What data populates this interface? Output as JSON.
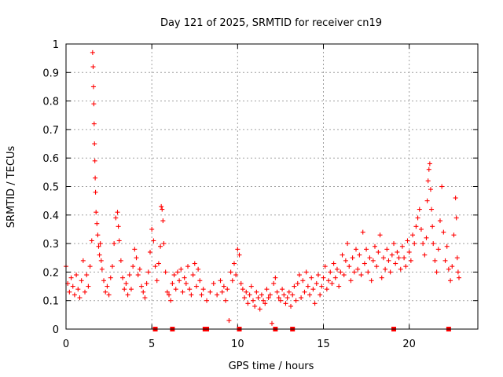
{
  "chart_data": {
    "type": "scatter",
    "title": "Day 121 of 2025, SRMTID for receiver cn19",
    "xlabel": "GPS time / hours",
    "ylabel": "SRMTID / TECUs",
    "xlim": [
      0,
      24
    ],
    "ylim": [
      0,
      1
    ],
    "grid": true,
    "marker": "+",
    "color": "#ff0000",
    "x_ticks": [
      0,
      5,
      10,
      15,
      20
    ],
    "x_tick_labels": [
      "0",
      "5",
      "10",
      "15",
      "20"
    ],
    "y_ticks": [
      0,
      0.1,
      0.2,
      0.3,
      0.4,
      0.5,
      0.6,
      0.7,
      0.8,
      0.9,
      1
    ],
    "y_tick_labels": [
      "0",
      "0.1",
      "0.2",
      "0.3",
      "0.4",
      "0.5",
      "0.6",
      "0.7",
      "0.8",
      "0.9",
      "1"
    ],
    "series": [
      {
        "name": "SRMTID",
        "points": [
          [
            0.0,
            0.22
          ],
          [
            0.1,
            0.16
          ],
          [
            0.2,
            0.13
          ],
          [
            0.3,
            0.18
          ],
          [
            0.4,
            0.15
          ],
          [
            0.5,
            0.12
          ],
          [
            0.6,
            0.19
          ],
          [
            0.7,
            0.14
          ],
          [
            0.8,
            0.11
          ],
          [
            0.9,
            0.17
          ],
          [
            1.0,
            0.24
          ],
          [
            1.1,
            0.13
          ],
          [
            1.2,
            0.19
          ],
          [
            1.3,
            0.15
          ],
          [
            1.4,
            0.22
          ],
          [
            1.5,
            0.31
          ],
          [
            1.55,
            0.97
          ],
          [
            1.58,
            0.92
          ],
          [
            1.6,
            0.85
          ],
          [
            1.62,
            0.79
          ],
          [
            1.64,
            0.72
          ],
          [
            1.66,
            0.65
          ],
          [
            1.68,
            0.59
          ],
          [
            1.7,
            0.53
          ],
          [
            1.72,
            0.48
          ],
          [
            1.75,
            0.41
          ],
          [
            1.8,
            0.37
          ],
          [
            1.85,
            0.33
          ],
          [
            1.9,
            0.29
          ],
          [
            1.95,
            0.26
          ],
          [
            2.0,
            0.3
          ],
          [
            2.05,
            0.24
          ],
          [
            2.1,
            0.21
          ],
          [
            2.2,
            0.17
          ],
          [
            2.3,
            0.13
          ],
          [
            2.4,
            0.15
          ],
          [
            2.5,
            0.12
          ],
          [
            2.6,
            0.18
          ],
          [
            2.7,
            0.22
          ],
          [
            2.8,
            0.3
          ],
          [
            2.9,
            0.39
          ],
          [
            3.0,
            0.41
          ],
          [
            3.05,
            0.36
          ],
          [
            3.1,
            0.31
          ],
          [
            3.2,
            0.24
          ],
          [
            3.3,
            0.18
          ],
          [
            3.4,
            0.14
          ],
          [
            3.5,
            0.16
          ],
          [
            3.6,
            0.12
          ],
          [
            3.7,
            0.19
          ],
          [
            3.8,
            0.14
          ],
          [
            3.9,
            0.22
          ],
          [
            4.0,
            0.28
          ],
          [
            4.1,
            0.25
          ],
          [
            4.2,
            0.19
          ],
          [
            4.3,
            0.21
          ],
          [
            4.4,
            0.15
          ],
          [
            4.5,
            0.13
          ],
          [
            4.6,
            0.11
          ],
          [
            4.7,
            0.16
          ],
          [
            4.8,
            0.2
          ],
          [
            4.9,
            0.27
          ],
          [
            5.0,
            0.35
          ],
          [
            5.1,
            0.31
          ],
          [
            5.2,
            0.22
          ],
          [
            5.3,
            0.17
          ],
          [
            5.4,
            0.23
          ],
          [
            5.5,
            0.29
          ],
          [
            5.55,
            0.43
          ],
          [
            5.6,
            0.42
          ],
          [
            5.65,
            0.38
          ],
          [
            5.7,
            0.3
          ],
          [
            5.8,
            0.2
          ],
          [
            5.9,
            0.13
          ],
          [
            6.0,
            0.12
          ],
          [
            6.1,
            0.1
          ],
          [
            6.2,
            0.16
          ],
          [
            6.3,
            0.19
          ],
          [
            6.4,
            0.14
          ],
          [
            6.5,
            0.2
          ],
          [
            6.6,
            0.17
          ],
          [
            6.7,
            0.21
          ],
          [
            6.8,
            0.13
          ],
          [
            6.9,
            0.18
          ],
          [
            7.0,
            0.16
          ],
          [
            7.1,
            0.22
          ],
          [
            7.2,
            0.14
          ],
          [
            7.3,
            0.12
          ],
          [
            7.4,
            0.19
          ],
          [
            7.5,
            0.23
          ],
          [
            7.6,
            0.15
          ],
          [
            7.7,
            0.21
          ],
          [
            7.8,
            0.17
          ],
          [
            7.9,
            0.12
          ],
          [
            8.0,
            0.14
          ],
          [
            8.2,
            0.1
          ],
          [
            8.4,
            0.13
          ],
          [
            8.6,
            0.16
          ],
          [
            8.8,
            0.12
          ],
          [
            9.0,
            0.17
          ],
          [
            9.1,
            0.13
          ],
          [
            9.2,
            0.15
          ],
          [
            9.3,
            0.1
          ],
          [
            9.4,
            0.14
          ],
          [
            9.5,
            0.03
          ],
          [
            9.6,
            0.2
          ],
          [
            9.7,
            0.17
          ],
          [
            9.8,
            0.23
          ],
          [
            9.9,
            0.19
          ],
          [
            10.0,
            0.28
          ],
          [
            10.1,
            0.26
          ],
          [
            10.2,
            0.16
          ],
          [
            10.3,
            0.14
          ],
          [
            10.4,
            0.11
          ],
          [
            10.5,
            0.13
          ],
          [
            10.6,
            0.09
          ],
          [
            10.7,
            0.12
          ],
          [
            10.8,
            0.15
          ],
          [
            10.9,
            0.1
          ],
          [
            11.0,
            0.08
          ],
          [
            11.1,
            0.13
          ],
          [
            11.2,
            0.11
          ],
          [
            11.3,
            0.07
          ],
          [
            11.4,
            0.12
          ],
          [
            11.5,
            0.1
          ],
          [
            11.6,
            0.09
          ],
          [
            11.7,
            0.14
          ],
          [
            11.8,
            0.11
          ],
          [
            11.9,
            0.12
          ],
          [
            12.0,
            0.02
          ],
          [
            12.1,
            0.16
          ],
          [
            12.2,
            0.18
          ],
          [
            12.3,
            0.13
          ],
          [
            12.4,
            0.11
          ],
          [
            12.5,
            0.1
          ],
          [
            12.6,
            0.14
          ],
          [
            12.7,
            0.12
          ],
          [
            12.8,
            0.09
          ],
          [
            12.9,
            0.11
          ],
          [
            13.0,
            0.13
          ],
          [
            13.1,
            0.08
          ],
          [
            13.2,
            0.12
          ],
          [
            13.3,
            0.15
          ],
          [
            13.4,
            0.1
          ],
          [
            13.5,
            0.16
          ],
          [
            13.6,
            0.19
          ],
          [
            13.7,
            0.11
          ],
          [
            13.8,
            0.17
          ],
          [
            13.9,
            0.13
          ],
          [
            14.0,
            0.2
          ],
          [
            14.1,
            0.15
          ],
          [
            14.2,
            0.12
          ],
          [
            14.3,
            0.18
          ],
          [
            14.4,
            0.14
          ],
          [
            14.5,
            0.09
          ],
          [
            14.6,
            0.16
          ],
          [
            14.7,
            0.19
          ],
          [
            14.8,
            0.12
          ],
          [
            14.9,
            0.15
          ],
          [
            15.0,
            0.18
          ],
          [
            15.1,
            0.22
          ],
          [
            15.2,
            0.14
          ],
          [
            15.3,
            0.17
          ],
          [
            15.4,
            0.2
          ],
          [
            15.5,
            0.16
          ],
          [
            15.6,
            0.23
          ],
          [
            15.7,
            0.18
          ],
          [
            15.8,
            0.21
          ],
          [
            15.9,
            0.15
          ],
          [
            16.0,
            0.2
          ],
          [
            16.1,
            0.26
          ],
          [
            16.2,
            0.19
          ],
          [
            16.3,
            0.24
          ],
          [
            16.4,
            0.3
          ],
          [
            16.5,
            0.22
          ],
          [
            16.6,
            0.17
          ],
          [
            16.7,
            0.25
          ],
          [
            16.8,
            0.2
          ],
          [
            16.9,
            0.28
          ],
          [
            17.0,
            0.21
          ],
          [
            17.1,
            0.26
          ],
          [
            17.2,
            0.19
          ],
          [
            17.3,
            0.34
          ],
          [
            17.4,
            0.23
          ],
          [
            17.5,
            0.28
          ],
          [
            17.6,
            0.2
          ],
          [
            17.7,
            0.25
          ],
          [
            17.8,
            0.17
          ],
          [
            17.9,
            0.24
          ],
          [
            18.0,
            0.29
          ],
          [
            18.1,
            0.22
          ],
          [
            18.2,
            0.27
          ],
          [
            18.3,
            0.33
          ],
          [
            18.4,
            0.18
          ],
          [
            18.5,
            0.25
          ],
          [
            18.6,
            0.21
          ],
          [
            18.7,
            0.28
          ],
          [
            18.8,
            0.24
          ],
          [
            18.9,
            0.2
          ],
          [
            19.0,
            0.26
          ],
          [
            19.1,
            0.3
          ],
          [
            19.2,
            0.23
          ],
          [
            19.3,
            0.27
          ],
          [
            19.4,
            0.25
          ],
          [
            19.5,
            0.21
          ],
          [
            19.6,
            0.29
          ],
          [
            19.7,
            0.25
          ],
          [
            19.8,
            0.22
          ],
          [
            19.9,
            0.31
          ],
          [
            20.0,
            0.27
          ],
          [
            20.1,
            0.24
          ],
          [
            20.2,
            0.33
          ],
          [
            20.3,
            0.3
          ],
          [
            20.4,
            0.36
          ],
          [
            20.5,
            0.39
          ],
          [
            20.6,
            0.42
          ],
          [
            20.7,
            0.35
          ],
          [
            20.8,
            0.3
          ],
          [
            20.9,
            0.26
          ],
          [
            21.0,
            0.32
          ],
          [
            21.05,
            0.45
          ],
          [
            21.1,
            0.52
          ],
          [
            21.15,
            0.56
          ],
          [
            21.2,
            0.58
          ],
          [
            21.25,
            0.49
          ],
          [
            21.3,
            0.42
          ],
          [
            21.35,
            0.36
          ],
          [
            21.4,
            0.3
          ],
          [
            21.5,
            0.24
          ],
          [
            21.6,
            0.2
          ],
          [
            21.7,
            0.28
          ],
          [
            21.8,
            0.38
          ],
          [
            21.9,
            0.5
          ],
          [
            22.0,
            0.34
          ],
          [
            22.1,
            0.24
          ],
          [
            22.2,
            0.29
          ],
          [
            22.3,
            0.21
          ],
          [
            22.4,
            0.17
          ],
          [
            22.5,
            0.22
          ],
          [
            22.6,
            0.33
          ],
          [
            22.7,
            0.46
          ],
          [
            22.75,
            0.39
          ],
          [
            22.8,
            0.25
          ],
          [
            22.85,
            0.2
          ],
          [
            22.9,
            0.18
          ]
        ]
      }
    ],
    "gap_markers_x": [
      5.2,
      6.2,
      8.1,
      8.2,
      10.1,
      12.2,
      13.2,
      19.1,
      22.3
    ]
  }
}
